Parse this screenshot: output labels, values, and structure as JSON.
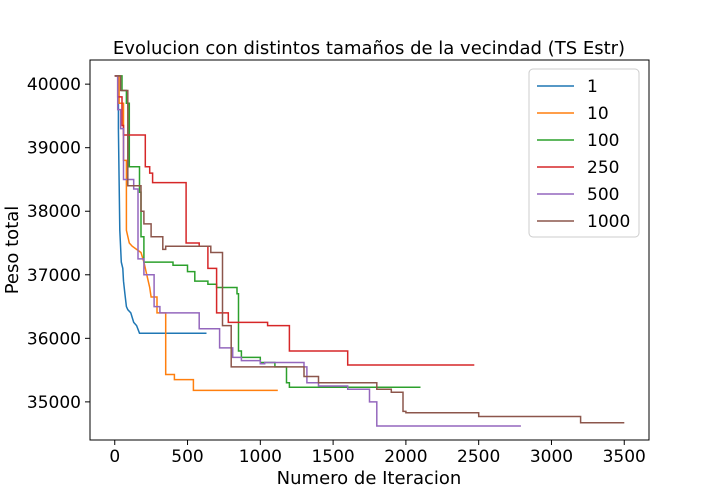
{
  "chart_data": {
    "type": "line",
    "title": "Evolucion con distintos tamaños de la vecindad (TS Estr)",
    "xlabel": "Numero de Iteracion",
    "ylabel": "Peso total",
    "xlim": [
      -170,
      3670
    ],
    "ylim": [
      34400,
      40380
    ],
    "xticks": [
      0,
      500,
      1000,
      1500,
      2000,
      2500,
      3000,
      3500
    ],
    "yticks": [
      35000,
      36000,
      37000,
      38000,
      39000,
      40000
    ],
    "grid": false,
    "legend_position": "upper right",
    "series": [
      {
        "name": "1",
        "color": "#1f77b4",
        "points": [
          [
            0,
            40130
          ],
          [
            25,
            40130
          ],
          [
            25,
            39300
          ],
          [
            30,
            38500
          ],
          [
            35,
            37700
          ],
          [
            45,
            37200
          ],
          [
            55,
            37100
          ],
          [
            60,
            36900
          ],
          [
            70,
            36700
          ],
          [
            80,
            36500
          ],
          [
            90,
            36450
          ],
          [
            110,
            36400
          ],
          [
            130,
            36250
          ],
          [
            150,
            36200
          ],
          [
            170,
            36080
          ],
          [
            630,
            36080
          ]
        ]
      },
      {
        "name": "10",
        "color": "#ff7f0e",
        "points": [
          [
            0,
            40130
          ],
          [
            30,
            40130
          ],
          [
            30,
            39700
          ],
          [
            60,
            39700
          ],
          [
            60,
            38800
          ],
          [
            80,
            38800
          ],
          [
            80,
            37700
          ],
          [
            100,
            37500
          ],
          [
            120,
            37450
          ],
          [
            150,
            37400
          ],
          [
            180,
            37350
          ],
          [
            200,
            37200
          ],
          [
            220,
            37000
          ],
          [
            240,
            36800
          ],
          [
            250,
            36650
          ],
          [
            290,
            36650
          ],
          [
            290,
            36400
          ],
          [
            350,
            36400
          ],
          [
            350,
            35430
          ],
          [
            410,
            35430
          ],
          [
            410,
            35350
          ],
          [
            540,
            35350
          ],
          [
            540,
            35180
          ],
          [
            1120,
            35180
          ]
        ]
      },
      {
        "name": "100",
        "color": "#2ca02c",
        "points": [
          [
            0,
            40130
          ],
          [
            50,
            40130
          ],
          [
            50,
            39900
          ],
          [
            80,
            39900
          ],
          [
            80,
            39700
          ],
          [
            100,
            39700
          ],
          [
            100,
            38700
          ],
          [
            170,
            38700
          ],
          [
            170,
            38300
          ],
          [
            180,
            38300
          ],
          [
            180,
            37600
          ],
          [
            200,
            37600
          ],
          [
            200,
            37200
          ],
          [
            400,
            37200
          ],
          [
            400,
            37150
          ],
          [
            500,
            37150
          ],
          [
            500,
            37050
          ],
          [
            550,
            37050
          ],
          [
            550,
            36900
          ],
          [
            640,
            36900
          ],
          [
            640,
            36850
          ],
          [
            700,
            36850
          ],
          [
            700,
            36800
          ],
          [
            840,
            36800
          ],
          [
            840,
            36700
          ],
          [
            850,
            36700
          ],
          [
            850,
            35800
          ],
          [
            870,
            35800
          ],
          [
            870,
            35700
          ],
          [
            1000,
            35700
          ],
          [
            1000,
            35620
          ],
          [
            1100,
            35620
          ],
          [
            1100,
            35550
          ],
          [
            1180,
            35550
          ],
          [
            1180,
            35300
          ],
          [
            1200,
            35300
          ],
          [
            1200,
            35230
          ],
          [
            2100,
            35230
          ]
        ]
      },
      {
        "name": "250",
        "color": "#d62728",
        "points": [
          [
            0,
            40130
          ],
          [
            20,
            40130
          ],
          [
            20,
            39800
          ],
          [
            50,
            39800
          ],
          [
            50,
            39350
          ],
          [
            60,
            39350
          ],
          [
            60,
            39200
          ],
          [
            210,
            39200
          ],
          [
            210,
            38700
          ],
          [
            240,
            38700
          ],
          [
            240,
            38600
          ],
          [
            260,
            38600
          ],
          [
            260,
            38450
          ],
          [
            490,
            38450
          ],
          [
            490,
            37500
          ],
          [
            580,
            37500
          ],
          [
            580,
            37450
          ],
          [
            640,
            37450
          ],
          [
            640,
            37100
          ],
          [
            700,
            37100
          ],
          [
            700,
            36400
          ],
          [
            780,
            36400
          ],
          [
            780,
            36250
          ],
          [
            1050,
            36250
          ],
          [
            1050,
            36200
          ],
          [
            1200,
            36200
          ],
          [
            1200,
            35800
          ],
          [
            1600,
            35800
          ],
          [
            1600,
            35580
          ],
          [
            2470,
            35580
          ]
        ]
      },
      {
        "name": "500",
        "color": "#9467bd",
        "points": [
          [
            0,
            40130
          ],
          [
            20,
            40130
          ],
          [
            20,
            39600
          ],
          [
            40,
            39600
          ],
          [
            40,
            39300
          ],
          [
            60,
            39300
          ],
          [
            60,
            38500
          ],
          [
            130,
            38500
          ],
          [
            130,
            38350
          ],
          [
            160,
            38350
          ],
          [
            160,
            37250
          ],
          [
            200,
            37250
          ],
          [
            200,
            37000
          ],
          [
            270,
            37000
          ],
          [
            270,
            36500
          ],
          [
            310,
            36500
          ],
          [
            310,
            36400
          ],
          [
            580,
            36400
          ],
          [
            580,
            36150
          ],
          [
            720,
            36150
          ],
          [
            720,
            35850
          ],
          [
            810,
            35850
          ],
          [
            810,
            35700
          ],
          [
            870,
            35700
          ],
          [
            870,
            35650
          ],
          [
            1000,
            35650
          ],
          [
            1000,
            35600
          ],
          [
            1030,
            35600
          ],
          [
            1030,
            35620
          ],
          [
            1300,
            35620
          ],
          [
            1300,
            35550
          ],
          [
            1320,
            35550
          ],
          [
            1320,
            35300
          ],
          [
            1400,
            35300
          ],
          [
            1400,
            35250
          ],
          [
            1600,
            35250
          ],
          [
            1600,
            35200
          ],
          [
            1750,
            35200
          ],
          [
            1750,
            35000
          ],
          [
            1800,
            35000
          ],
          [
            1800,
            34620
          ],
          [
            2790,
            34620
          ]
        ]
      },
      {
        "name": "1000",
        "color": "#8c564b",
        "points": [
          [
            0,
            40130
          ],
          [
            40,
            40130
          ],
          [
            40,
            39900
          ],
          [
            90,
            39900
          ],
          [
            90,
            38400
          ],
          [
            180,
            38400
          ],
          [
            180,
            38000
          ],
          [
            200,
            38000
          ],
          [
            200,
            37800
          ],
          [
            250,
            37800
          ],
          [
            250,
            37600
          ],
          [
            330,
            37600
          ],
          [
            330,
            37400
          ],
          [
            350,
            37400
          ],
          [
            350,
            37450
          ],
          [
            660,
            37450
          ],
          [
            660,
            37350
          ],
          [
            740,
            37350
          ],
          [
            740,
            36200
          ],
          [
            800,
            36200
          ],
          [
            800,
            35550
          ],
          [
            1300,
            35550
          ],
          [
            1300,
            35400
          ],
          [
            1400,
            35400
          ],
          [
            1400,
            35300
          ],
          [
            1800,
            35300
          ],
          [
            1800,
            35200
          ],
          [
            1900,
            35200
          ],
          [
            1900,
            35150
          ],
          [
            1980,
            35150
          ],
          [
            1980,
            34850
          ],
          [
            2000,
            34850
          ],
          [
            2000,
            34830
          ],
          [
            2500,
            34830
          ],
          [
            2500,
            34770
          ],
          [
            3200,
            34770
          ],
          [
            3200,
            34670
          ],
          [
            3500,
            34670
          ]
        ]
      }
    ]
  }
}
